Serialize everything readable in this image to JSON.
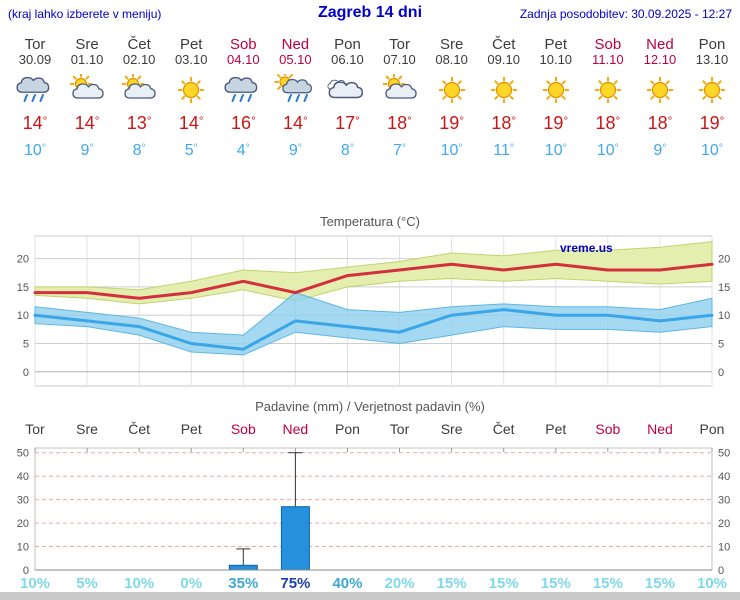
{
  "header": {
    "left_hint": "(kraj lahko izberete v meniju)",
    "title": "Zagreb 14 dni",
    "updated": "Zadnja posodobitev: 30.09.2025 - 12:27"
  },
  "days": [
    {
      "name": "Tor",
      "date": "30.09",
      "weekend": false,
      "icon": "rain",
      "tmax": "14",
      "tmin": "10"
    },
    {
      "name": "Sre",
      "date": "01.10",
      "weekend": false,
      "icon": "partly",
      "tmax": "14",
      "tmin": "9"
    },
    {
      "name": "Čet",
      "date": "02.10",
      "weekend": false,
      "icon": "partly",
      "tmax": "13",
      "tmin": "8"
    },
    {
      "name": "Pet",
      "date": "03.10",
      "weekend": false,
      "icon": "sun",
      "tmax": "14",
      "tmin": "5"
    },
    {
      "name": "Sob",
      "date": "04.10",
      "weekend": true,
      "icon": "rain",
      "tmax": "16",
      "tmin": "4"
    },
    {
      "name": "Ned",
      "date": "05.10",
      "weekend": true,
      "icon": "rain-sun",
      "tmax": "14",
      "tmin": "9"
    },
    {
      "name": "Pon",
      "date": "06.10",
      "weekend": false,
      "icon": "cloud",
      "tmax": "17",
      "tmin": "8"
    },
    {
      "name": "Tor",
      "date": "07.10",
      "weekend": false,
      "icon": "partly",
      "tmax": "18",
      "tmin": "7"
    },
    {
      "name": "Sre",
      "date": "08.10",
      "weekend": false,
      "icon": "sun",
      "tmax": "19",
      "tmin": "10"
    },
    {
      "name": "Čet",
      "date": "09.10",
      "weekend": false,
      "icon": "sun",
      "tmax": "18",
      "tmin": "11"
    },
    {
      "name": "Pet",
      "date": "10.10",
      "weekend": false,
      "icon": "sun",
      "tmax": "19",
      "tmin": "10"
    },
    {
      "name": "Sob",
      "date": "11.10",
      "weekend": true,
      "icon": "sun",
      "tmax": "18",
      "tmin": "10"
    },
    {
      "name": "Ned",
      "date": "12.10",
      "weekend": true,
      "icon": "sun",
      "tmax": "18",
      "tmin": "9"
    },
    {
      "name": "Pon",
      "date": "13.10",
      "weekend": false,
      "icon": "sun",
      "tmax": "19",
      "tmin": "10"
    }
  ],
  "chart_data": [
    {
      "type": "line",
      "title": "Temperatura (°C)",
      "watermark": "vreme.us",
      "x_labels": [
        "Tor",
        "Sre",
        "Čet",
        "Pet",
        "Sob",
        "Ned",
        "Pon",
        "Tor",
        "Sre",
        "Čet",
        "Pet",
        "Sob",
        "Ned",
        "Pon"
      ],
      "ylim": [
        -2.5,
        24
      ],
      "yticks": [
        0,
        5,
        10,
        15,
        20
      ],
      "series": [
        {
          "name": "tmax",
          "values": [
            14,
            14,
            13,
            14,
            16,
            14,
            17,
            18,
            19,
            18,
            19,
            18,
            18,
            19
          ]
        },
        {
          "name": "tmin",
          "values": [
            10,
            9,
            8,
            5,
            4,
            9,
            8,
            7,
            10,
            11,
            10,
            10,
            9,
            10
          ]
        },
        {
          "name": "tmax_band_upper",
          "values": [
            15,
            15,
            14.5,
            16,
            18,
            17.5,
            18.5,
            19.5,
            21,
            20.5,
            21.5,
            21.5,
            22,
            23
          ]
        },
        {
          "name": "tmax_band_lower",
          "values": [
            13.5,
            13,
            12,
            13,
            14.5,
            12.5,
            15,
            16,
            16.5,
            16,
            16.5,
            16,
            15.5,
            16
          ]
        },
        {
          "name": "tmin_band_upper",
          "values": [
            11.5,
            10.5,
            9.5,
            7,
            6.5,
            14,
            11,
            10.5,
            11.5,
            12,
            11.5,
            11.5,
            11,
            13
          ]
        },
        {
          "name": "tmin_band_lower",
          "values": [
            8.5,
            8,
            6.5,
            3.5,
            3,
            7,
            6,
            5,
            6.5,
            8,
            7.5,
            7.5,
            7,
            8
          ]
        }
      ]
    },
    {
      "type": "bar",
      "title": "Padavine (mm) / Verjetnost padavin (%)",
      "categories": [
        "Tor",
        "Sre",
        "Čet",
        "Pet",
        "Sob",
        "Ned",
        "Pon",
        "Tor",
        "Sre",
        "Čet",
        "Pet",
        "Sob",
        "Ned",
        "Pon"
      ],
      "weekend": [
        false,
        false,
        false,
        false,
        true,
        true,
        false,
        false,
        false,
        false,
        false,
        true,
        true,
        false
      ],
      "values": [
        0,
        0,
        0,
        0,
        2,
        27,
        0,
        0,
        0,
        0,
        0,
        0,
        0,
        0
      ],
      "whisker_hi": [
        0,
        0,
        0,
        0,
        9,
        50,
        0,
        0,
        0,
        0,
        0,
        0,
        0,
        0
      ],
      "whisker_lo": [
        0,
        0,
        0,
        0,
        0,
        5,
        0,
        0,
        0,
        0,
        0,
        0,
        0,
        0
      ],
      "probabilities": [
        10,
        5,
        10,
        0,
        35,
        75,
        40,
        20,
        15,
        15,
        15,
        15,
        15,
        10
      ],
      "ylim": [
        0,
        52
      ],
      "yticks": [
        0,
        10,
        20,
        30,
        40,
        50
      ]
    }
  ],
  "colors": {
    "header_blue": "#0000cc",
    "weekend_red": "#c00040",
    "dayname_gray": "#3c3c3c",
    "tmax_text": "#cc1616",
    "tmin_text": "#3fa9e8",
    "tmax_line": "#d2303e",
    "tmin_line": "#3aa6e8",
    "band_warm": "#e4eeae",
    "band_warm_edge": "#c2d36e",
    "band_cold": "#8fd0ef",
    "band_cold_edge": "#5fb6e0",
    "bar_fill": "#2590dc",
    "bar_edge": "#0c62a8",
    "grid_gray": "#cfcfcf",
    "grid_red": "#f0a8a8",
    "prob_low": "#7fd9e8",
    "prob_mid": "#3fa8d0",
    "prob_high": "#1b3fae",
    "watermark_blue": "#0000c8",
    "chart_title_gray": "#555555",
    "footer_gray": "#c9c9c9",
    "sun": "#ffd628",
    "sun_ray": "#f5a80c",
    "sun_stroke": "#e09000",
    "cloud_fill": "#e9eff6",
    "cloud_dark": "#c7d4e2",
    "cloud_stroke": "#4a5a78",
    "rain": "#2277dd"
  }
}
